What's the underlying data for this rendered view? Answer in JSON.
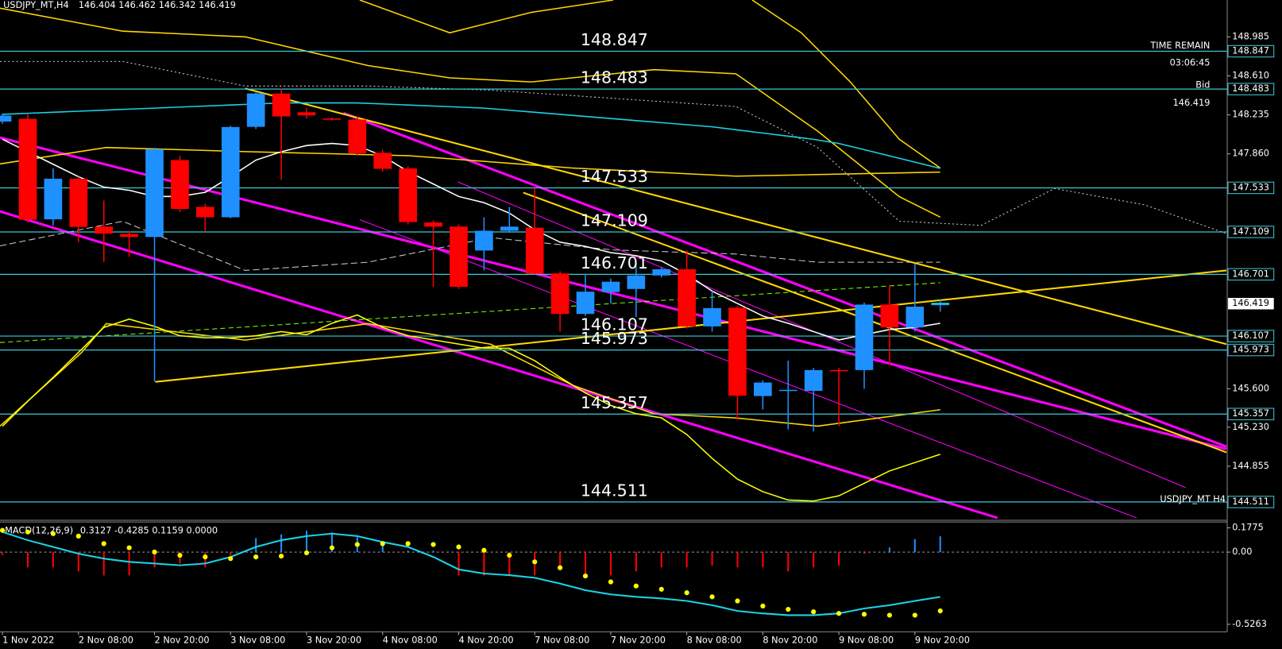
{
  "chart_data": {
    "type": "candlestick",
    "symbol": "USDJPY_MT,H4",
    "watermark": "USDJPY_MT H4",
    "time_remain_label": "TIME REMAIN",
    "time_remain": "03:06:45",
    "bid_label": "Bid",
    "categories": [
      "1 Nov 2022",
      null,
      null,
      "2 Nov 08:00",
      null,
      null,
      "2 Nov 20:00",
      null,
      null,
      "3 Nov 08:00",
      null,
      null,
      "3 Nov 20:00",
      null,
      null,
      "4 Nov 08:00",
      null,
      null,
      "4 Nov 20:00",
      null,
      null,
      "7 Nov 08:00",
      null,
      null,
      "7 Nov 20:00",
      null,
      null,
      "8 Nov 08:00",
      null,
      null,
      "8 Nov 20:00",
      null,
      null,
      "9 Nov 08:00",
      null,
      null,
      "9 Nov 20:00",
      null
    ],
    "open": [
      148.17,
      148.197,
      147.23,
      147.62,
      147.16,
      147.09,
      147.06,
      147.8,
      147.35,
      147.25,
      148.12,
      148.44,
      148.26,
      148.2,
      148.19,
      147.87,
      147.72,
      147.2,
      147.16,
      146.93,
      147.12,
      147.15,
      146.71,
      146.32,
      146.53,
      146.56,
      146.69,
      146.75,
      146.2,
      146.38,
      145.53,
      145.58,
      145.58,
      145.78,
      145.78,
      146.41,
      146.19,
      146.404
    ],
    "high": [
      148.25,
      148.24,
      147.72,
      147.64,
      147.41,
      147.12,
      147.92,
      147.84,
      147.38,
      148.13,
      148.45,
      148.49,
      148.3,
      148.21,
      148.22,
      147.9,
      147.74,
      147.22,
      147.18,
      147.25,
      147.35,
      147.53,
      146.73,
      146.7,
      146.66,
      146.81,
      146.77,
      146.93,
      146.54,
      146.4,
      145.68,
      145.87,
      145.8,
      145.8,
      146.43,
      146.6,
      146.8,
      146.462
    ],
    "low": [
      148.15,
      147.2,
      147.17,
      147.01,
      146.82,
      146.87,
      145.67,
      147.3,
      147.11,
      147.24,
      148.1,
      147.61,
      148.2,
      148.18,
      147.84,
      147.69,
      147.18,
      146.58,
      146.56,
      146.74,
      147.1,
      146.7,
      146.15,
      146.3,
      146.42,
      146.29,
      146.67,
      146.18,
      146.15,
      145.3,
      145.4,
      145.21,
      145.19,
      145.24,
      145.6,
      145.83,
      146.15,
      146.342
    ],
    "close": [
      148.228,
      147.227,
      147.621,
      147.157,
      147.093,
      147.06,
      147.905,
      147.33,
      147.25,
      148.118,
      148.441,
      148.22,
      148.23,
      148.19,
      147.866,
      147.716,
      147.204,
      147.16,
      146.581,
      147.12,
      147.16,
      146.707,
      146.32,
      146.534,
      146.63,
      146.69,
      146.75,
      146.2,
      146.376,
      145.533,
      145.66,
      145.59,
      145.78,
      145.77,
      146.41,
      146.19,
      146.39,
      146.419
    ],
    "up_color": "#1e90ff",
    "down_color": "#ff0000",
    "overlays": [
      {
        "color": "#ffffff",
        "values": [
          148.0,
          147.88,
          147.76,
          147.64,
          147.54,
          147.51,
          147.45,
          147.45,
          147.49,
          147.64,
          147.8,
          147.88,
          147.94,
          147.96,
          147.94,
          147.84,
          147.69,
          147.57,
          147.45,
          147.39,
          147.29,
          147.13,
          147.01,
          146.97,
          146.91,
          146.88,
          146.83,
          146.7,
          146.54,
          146.42,
          146.3,
          146.23,
          146.15,
          146.07,
          146.12,
          146.17,
          146.19,
          146.23
        ]
      },
      {
        "color": "#19d3e6",
        "values": [
          148.24,
          148.25,
          148.26,
          148.27,
          148.28,
          148.29,
          148.3,
          148.31,
          148.32,
          148.33,
          148.34,
          148.35,
          148.35,
          148.35,
          148.35,
          148.34,
          148.33,
          148.32,
          148.31,
          148.3,
          148.28,
          148.26,
          148.24,
          148.22,
          148.2,
          148.18,
          148.16,
          148.14,
          148.12,
          148.09,
          148.06,
          148.03,
          148.0,
          147.96,
          147.9,
          147.84,
          147.78,
          147.72
        ]
      },
      {
        "color": "#ffff00",
        "values": [
          145.24,
          145.48,
          145.71,
          145.95,
          146.19,
          146.27,
          146.2,
          146.11,
          146.09,
          146.09,
          146.11,
          146.15,
          146.12,
          146.23,
          146.31,
          146.19,
          146.11,
          146.07,
          146.03,
          145.99,
          145.99,
          145.87,
          145.71,
          145.56,
          145.44,
          145.36,
          145.32,
          145.16,
          144.93,
          144.73,
          144.61,
          144.53,
          144.52,
          144.57,
          144.69,
          144.81,
          144.89,
          144.97
        ]
      }
    ],
    "levels": [
      148.847,
      148.483,
      147.533,
      147.109,
      146.701,
      146.107,
      145.973,
      145.357,
      144.511
    ],
    "level_color": "#3cc8d8",
    "ylim": [
      144.35,
      149.34
    ],
    "yticks": [
      148.985,
      {
        "value": 148.61,
        "label": "148.610"
      },
      148.235,
      {
        "value": 147.86,
        "label": "147.860"
      },
      {
        "value": 145.6,
        "label": "145.600"
      },
      {
        "value": 145.23,
        "label": "145.230"
      },
      144.855
    ],
    "macd": {
      "title": "MACD(12,26,9)",
      "readout": "0.3127 -0.4285 0.1159 0.0000",
      "ylim": [
        -0.575,
        0.22
      ],
      "yticks": [
        0.1775,
        {
          "value": 0,
          "label": "0.00"
        },
        -0.5263
      ],
      "histogram": [
        -0.02,
        -0.111,
        -0.111,
        -0.14,
        -0.17,
        -0.17,
        -0.111,
        -0.082,
        -0.111,
        -0.023,
        0.102,
        0.129,
        0.156,
        0.143,
        0.109,
        0.075,
        0.01,
        0.01,
        -0.17,
        -0.17,
        -0.17,
        -0.17,
        -0.111,
        -0.17,
        -0.17,
        -0.14,
        -0.111,
        -0.111,
        -0.099,
        -0.111,
        -0.111,
        -0.14,
        -0.111,
        -0.099,
        -0.012,
        0.034,
        0.095,
        0.1159
      ],
      "signal": [
        0.159,
        0.147,
        0.135,
        0.117,
        0.062,
        0.032,
        0.001,
        -0.023,
        -0.035,
        -0.047,
        -0.035,
        -0.029,
        -0.005,
        0.032,
        0.056,
        0.062,
        0.062,
        0.056,
        0.038,
        0.014,
        -0.023,
        -0.071,
        -0.114,
        -0.174,
        -0.217,
        -0.247,
        -0.271,
        -0.296,
        -0.326,
        -0.356,
        -0.393,
        -0.417,
        -0.435,
        -0.447,
        -0.453,
        -0.46,
        -0.46,
        -0.4285
      ],
      "line": [
        0.147,
        0.087,
        0.038,
        -0.011,
        -0.047,
        -0.071,
        -0.083,
        -0.096,
        -0.083,
        -0.035,
        0.038,
        0.087,
        0.117,
        0.135,
        0.117,
        0.074,
        0.038,
        -0.035,
        -0.126,
        -0.156,
        -0.168,
        -0.187,
        -0.229,
        -0.278,
        -0.308,
        -0.326,
        -0.338,
        -0.356,
        -0.387,
        -0.429,
        -0.447,
        -0.46,
        -0.46,
        -0.447,
        -0.411,
        -0.387,
        -0.356,
        -0.326
      ],
      "up_color": "#1e90ff",
      "down_color": "#ff0000",
      "signal_color": "#ffff00",
      "line_color": "#19d3e6"
    }
  }
}
